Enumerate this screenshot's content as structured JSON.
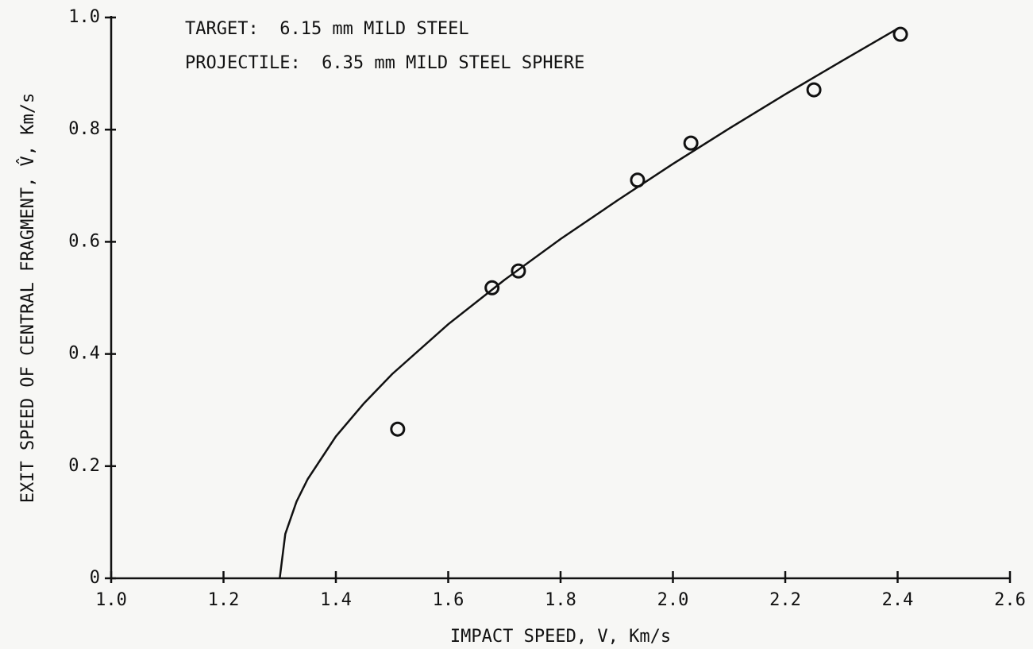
{
  "chart_data": {
    "type": "scatter",
    "xlabel": "IMPACT SPEED, V, Km/s",
    "ylabel": "EXIT SPEED OF CENTRAL FRAGMENT, V̂, Km/s",
    "annotations": [
      "TARGET:  6.15 mm MILD STEEL",
      "PROJECTILE:  6.35 mm MILD STEEL SPHERE"
    ],
    "xlim": [
      1.0,
      2.6
    ],
    "ylim": [
      0,
      1.0
    ],
    "xticks": [
      {
        "value": 1.0,
        "label": "1.0"
      },
      1.2,
      1.4,
      1.6,
      1.8,
      {
        "value": 2.0,
        "label": "2.0"
      },
      2.2,
      2.4,
      2.6
    ],
    "yticks": [
      0,
      0.2,
      0.4,
      0.6,
      0.8,
      {
        "value": 1.0,
        "label": "1.0"
      }
    ],
    "color": "#111111",
    "series": [
      {
        "type": "scatter",
        "x": [
          1.51,
          1.678,
          1.725,
          1.937,
          2.032,
          2.251,
          2.405
        ],
        "values": [
          0.266,
          0.518,
          0.548,
          0.71,
          0.776,
          0.871,
          0.97
        ]
      },
      {
        "type": "line",
        "x": [
          1.3,
          1.31,
          1.33,
          1.35,
          1.4,
          1.45,
          1.5,
          1.6,
          1.7,
          1.8,
          1.9,
          2.0,
          2.1,
          2.2,
          2.3,
          2.4
        ],
        "values": [
          0,
          0.079,
          0.137,
          0.177,
          0.253,
          0.312,
          0.364,
          0.453,
          0.532,
          0.605,
          0.673,
          0.739,
          0.802,
          0.863,
          0.922,
          0.98
        ]
      }
    ]
  }
}
